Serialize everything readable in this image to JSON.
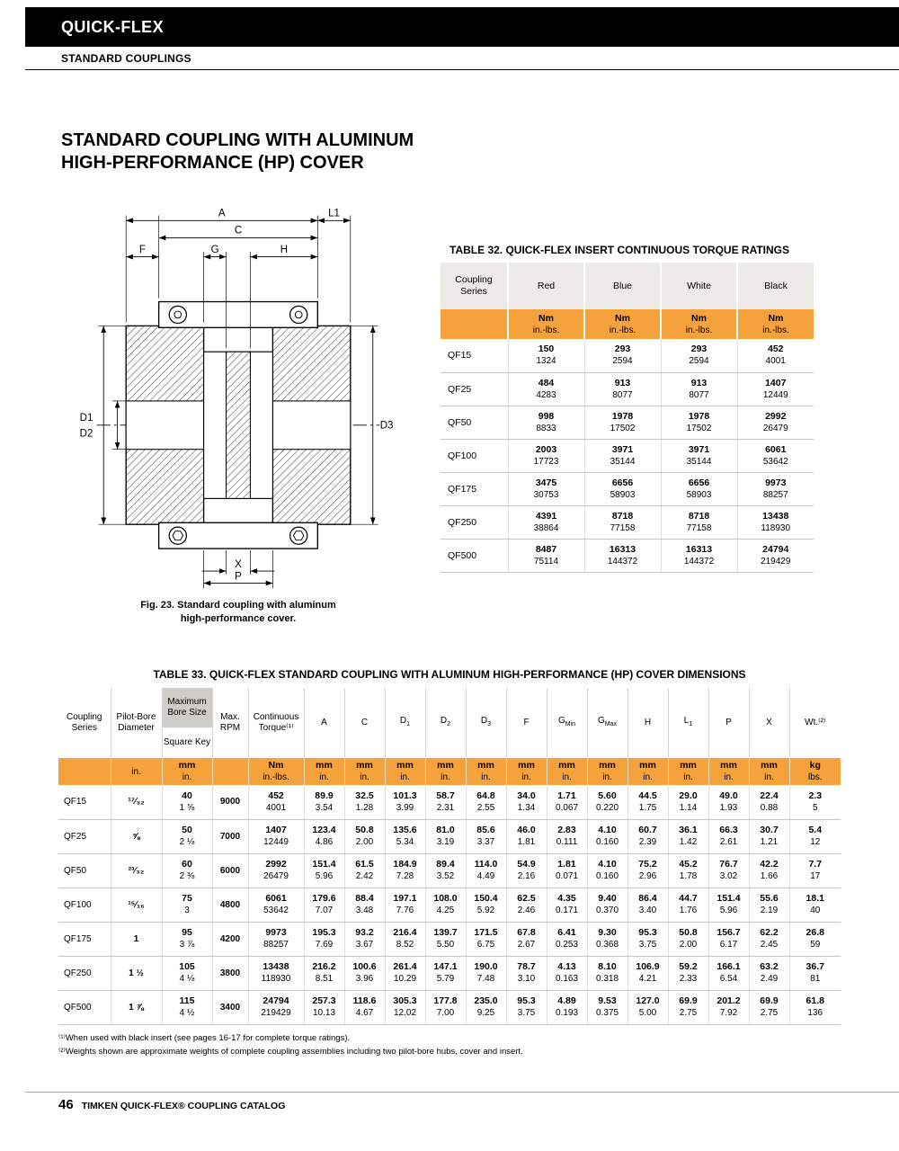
{
  "colors": {
    "accent_orange": "#F5A23C",
    "header_gray": "#EDEBE7",
    "bore_box_gray": "#CFCDC8",
    "grid_line_gray": "#C9C6C2",
    "masthead_black": "#000000"
  },
  "masthead": {
    "brand": "QUICK-FLEX",
    "section": "STANDARD COUPLINGS"
  },
  "page": {
    "title_line1": "STANDARD COUPLING WITH ALUMINUM",
    "title_line2": "HIGH-PERFORMANCE (HP) COVER",
    "fig_caption_line1": "Fig. 23. Standard coupling with aluminum",
    "fig_caption_line2": "high-performance cover.",
    "footnote1": "⁽¹⁾When used with black insert (see pages 16-17 for complete torque ratings).",
    "footnote2": "⁽²⁾Weights shown are approximate weights of complete coupling assemblies including two pilot-bore hubs, cover and insert.",
    "footer_page_number": "46",
    "footer_text": "TIMKEN QUICK-FLEX® COUPLING CATALOG"
  },
  "diagram": {
    "labels": {
      "a": "A",
      "c": "C",
      "l1": "L1",
      "f": "F",
      "g": "G",
      "h": "H",
      "d1": "D1",
      "d2": "D2",
      "d3": "D3",
      "x": "X",
      "p": "P"
    }
  },
  "table32": {
    "title": "TABLE 32. QUICK-FLEX INSERT CONTINUOUS TORQUE RATINGS",
    "series_header": "Coupling Series",
    "color_headers": [
      "Red",
      "Blue",
      "White",
      "Black"
    ],
    "unit_top": "Nm",
    "unit_bottom": "in.-lbs.",
    "rows": [
      {
        "series": "QF15",
        "values": [
          [
            "150",
            "1324"
          ],
          [
            "293",
            "2594"
          ],
          [
            "293",
            "2594"
          ],
          [
            "452",
            "4001"
          ]
        ]
      },
      {
        "series": "QF25",
        "values": [
          [
            "484",
            "4283"
          ],
          [
            "913",
            "8077"
          ],
          [
            "913",
            "8077"
          ],
          [
            "1407",
            "12449"
          ]
        ]
      },
      {
        "series": "QF50",
        "values": [
          [
            "998",
            "8833"
          ],
          [
            "1978",
            "17502"
          ],
          [
            "1978",
            "17502"
          ],
          [
            "2992",
            "26479"
          ]
        ]
      },
      {
        "series": "QF100",
        "values": [
          [
            "2003",
            "17723"
          ],
          [
            "3971",
            "35144"
          ],
          [
            "3971",
            "35144"
          ],
          [
            "6061",
            "53642"
          ]
        ]
      },
      {
        "series": "QF175",
        "values": [
          [
            "3475",
            "30753"
          ],
          [
            "6656",
            "58903"
          ],
          [
            "6656",
            "58903"
          ],
          [
            "9973",
            "88257"
          ]
        ]
      },
      {
        "series": "QF250",
        "values": [
          [
            "4391",
            "38864"
          ],
          [
            "8718",
            "77158"
          ],
          [
            "8718",
            "77158"
          ],
          [
            "13438",
            "118930"
          ]
        ]
      },
      {
        "series": "QF500",
        "values": [
          [
            "8487",
            "75114"
          ],
          [
            "16313",
            "144372"
          ],
          [
            "16313",
            "144372"
          ],
          [
            "24794",
            "219429"
          ]
        ]
      }
    ]
  },
  "table33": {
    "title": "TABLE 33. QUICK-FLEX STANDARD COUPLING WITH ALUMINUM HIGH-PERFORMANCE (HP) COVER DIMENSIONS",
    "headers": {
      "series": "Coupling Series",
      "pilot": "Pilot-Bore Diameter",
      "max_bore": "Maximum Bore Size",
      "square_key": "Square Key",
      "max_rpm": "Max. RPM",
      "torque": "Continuous Torque⁽¹⁾",
      "weight": "Wt.⁽²⁾"
    },
    "dim_cols": [
      {
        "label": "A"
      },
      {
        "label": "C"
      },
      {
        "label": "D",
        "sub": "1"
      },
      {
        "label": "D",
        "sub": "2"
      },
      {
        "label": "D",
        "sub": "3"
      },
      {
        "label": "F"
      },
      {
        "label": "G",
        "sub": "Min"
      },
      {
        "label": "G",
        "sub": "Max"
      },
      {
        "label": "H"
      },
      {
        "label": "L",
        "sub": "1"
      },
      {
        "label": "P"
      },
      {
        "label": "X"
      }
    ],
    "units": {
      "pilot": "in.",
      "bore": [
        "mm",
        "in."
      ],
      "torque": [
        "Nm",
        "in.-lbs."
      ],
      "dim": [
        "mm",
        "in."
      ],
      "weight": [
        "kg",
        "lbs."
      ]
    },
    "rows": [
      {
        "series": "QF15",
        "pilot": "¹⁷⁄₃₂",
        "bore": [
          "40",
          "1 ⅝"
        ],
        "rpm": "9000",
        "torque": [
          "452",
          "4001"
        ],
        "dims": [
          [
            "89.9",
            "3.54"
          ],
          [
            "32.5",
            "1.28"
          ],
          [
            "101.3",
            "3.99"
          ],
          [
            "58.7",
            "2.31"
          ],
          [
            "64.8",
            "2.55"
          ],
          [
            "34.0",
            "1.34"
          ],
          [
            "1.71",
            "0.067"
          ],
          [
            "5.60",
            "0.220"
          ],
          [
            "44.5",
            "1.75"
          ],
          [
            "29.0",
            "1.14"
          ],
          [
            "49.0",
            "1.93"
          ],
          [
            "22.4",
            "0.88"
          ]
        ],
        "wt": [
          "2.3",
          "5"
        ]
      },
      {
        "series": "QF25",
        "pilot": "⅝",
        "bore": [
          "50",
          "2 ⅛"
        ],
        "rpm": "7000",
        "torque": [
          "1407",
          "12449"
        ],
        "dims": [
          [
            "123.4",
            "4.86"
          ],
          [
            "50.8",
            "2.00"
          ],
          [
            "135.6",
            "5.34"
          ],
          [
            "81.0",
            "3.19"
          ],
          [
            "85.6",
            "3.37"
          ],
          [
            "46.0",
            "1.81"
          ],
          [
            "2.83",
            "0.111"
          ],
          [
            "4.10",
            "0.160"
          ],
          [
            "60.7",
            "2.39"
          ],
          [
            "36.1",
            "1.42"
          ],
          [
            "66.3",
            "2.61"
          ],
          [
            "30.7",
            "1.21"
          ]
        ],
        "wt": [
          "5.4",
          "12"
        ]
      },
      {
        "series": "QF50",
        "pilot": "²³⁄₃₂",
        "bore": [
          "60",
          "2 ⅜"
        ],
        "rpm": "6000",
        "torque": [
          "2992",
          "26479"
        ],
        "dims": [
          [
            "151.4",
            "5.96"
          ],
          [
            "61.5",
            "2.42"
          ],
          [
            "184.9",
            "7.28"
          ],
          [
            "89.4",
            "3.52"
          ],
          [
            "114.0",
            "4.49"
          ],
          [
            "54.9",
            "2.16"
          ],
          [
            "1.81",
            "0.071"
          ],
          [
            "4.10",
            "0.160"
          ],
          [
            "75.2",
            "2.96"
          ],
          [
            "45.2",
            "1.78"
          ],
          [
            "76.7",
            "3.02"
          ],
          [
            "42.2",
            "1.66"
          ]
        ],
        "wt": [
          "7.7",
          "17"
        ]
      },
      {
        "series": "QF100",
        "pilot": "¹⁵⁄₁₆",
        "bore": [
          "75",
          "3"
        ],
        "rpm": "4800",
        "torque": [
          "6061",
          "53642"
        ],
        "dims": [
          [
            "179.6",
            "7.07"
          ],
          [
            "88.4",
            "3.48"
          ],
          [
            "197.1",
            "7.76"
          ],
          [
            "108.0",
            "4.25"
          ],
          [
            "150.4",
            "5.92"
          ],
          [
            "62.5",
            "2.46"
          ],
          [
            "4.35",
            "0.171"
          ],
          [
            "9.40",
            "0.370"
          ],
          [
            "86.4",
            "3.40"
          ],
          [
            "44.7",
            "1.76"
          ],
          [
            "151.4",
            "5.96"
          ],
          [
            "55.6",
            "2.19"
          ]
        ],
        "wt": [
          "18.1",
          "40"
        ]
      },
      {
        "series": "QF175",
        "pilot": "1",
        "bore": [
          "95",
          "3 ⅞"
        ],
        "rpm": "4200",
        "torque": [
          "9973",
          "88257"
        ],
        "dims": [
          [
            "195.3",
            "7.69"
          ],
          [
            "93.2",
            "3.67"
          ],
          [
            "216.4",
            "8.52"
          ],
          [
            "139.7",
            "5.50"
          ],
          [
            "171.5",
            "6.75"
          ],
          [
            "67.8",
            "2.67"
          ],
          [
            "6.41",
            "0.253"
          ],
          [
            "9.30",
            "0.368"
          ],
          [
            "95.3",
            "3.75"
          ],
          [
            "50.8",
            "2.00"
          ],
          [
            "156.7",
            "6.17"
          ],
          [
            "62.2",
            "2.45"
          ]
        ],
        "wt": [
          "26.8",
          "59"
        ]
      },
      {
        "series": "QF250",
        "pilot": "1 ½",
        "bore": [
          "105",
          "4 ⅛"
        ],
        "rpm": "3800",
        "torque": [
          "13438",
          "118930"
        ],
        "dims": [
          [
            "216.2",
            "8.51"
          ],
          [
            "100.6",
            "3.96"
          ],
          [
            "261.4",
            "10.29"
          ],
          [
            "147.1",
            "5.79"
          ],
          [
            "190.0",
            "7.48"
          ],
          [
            "78.7",
            "3.10"
          ],
          [
            "4.13",
            "0.163"
          ],
          [
            "8.10",
            "0.318"
          ],
          [
            "106.9",
            "4.21"
          ],
          [
            "59.2",
            "2.33"
          ],
          [
            "166.1",
            "6.54"
          ],
          [
            "63.2",
            "2.49"
          ]
        ],
        "wt": [
          "36.7",
          "81"
        ]
      },
      {
        "series": "QF500",
        "pilot": "1 ⅞",
        "bore": [
          "115",
          "4 ½"
        ],
        "rpm": "3400",
        "torque": [
          "24794",
          "219429"
        ],
        "dims": [
          [
            "257.3",
            "10.13"
          ],
          [
            "118.6",
            "4.67"
          ],
          [
            "305.3",
            "12.02"
          ],
          [
            "177.8",
            "7.00"
          ],
          [
            "235.0",
            "9.25"
          ],
          [
            "95.3",
            "3.75"
          ],
          [
            "4.89",
            "0.193"
          ],
          [
            "9.53",
            "0.375"
          ],
          [
            "127.0",
            "5.00"
          ],
          [
            "69.9",
            "2.75"
          ],
          [
            "201.2",
            "7.92"
          ],
          [
            "69.9",
            "2.75"
          ]
        ],
        "wt": [
          "61.8",
          "136"
        ]
      }
    ]
  }
}
